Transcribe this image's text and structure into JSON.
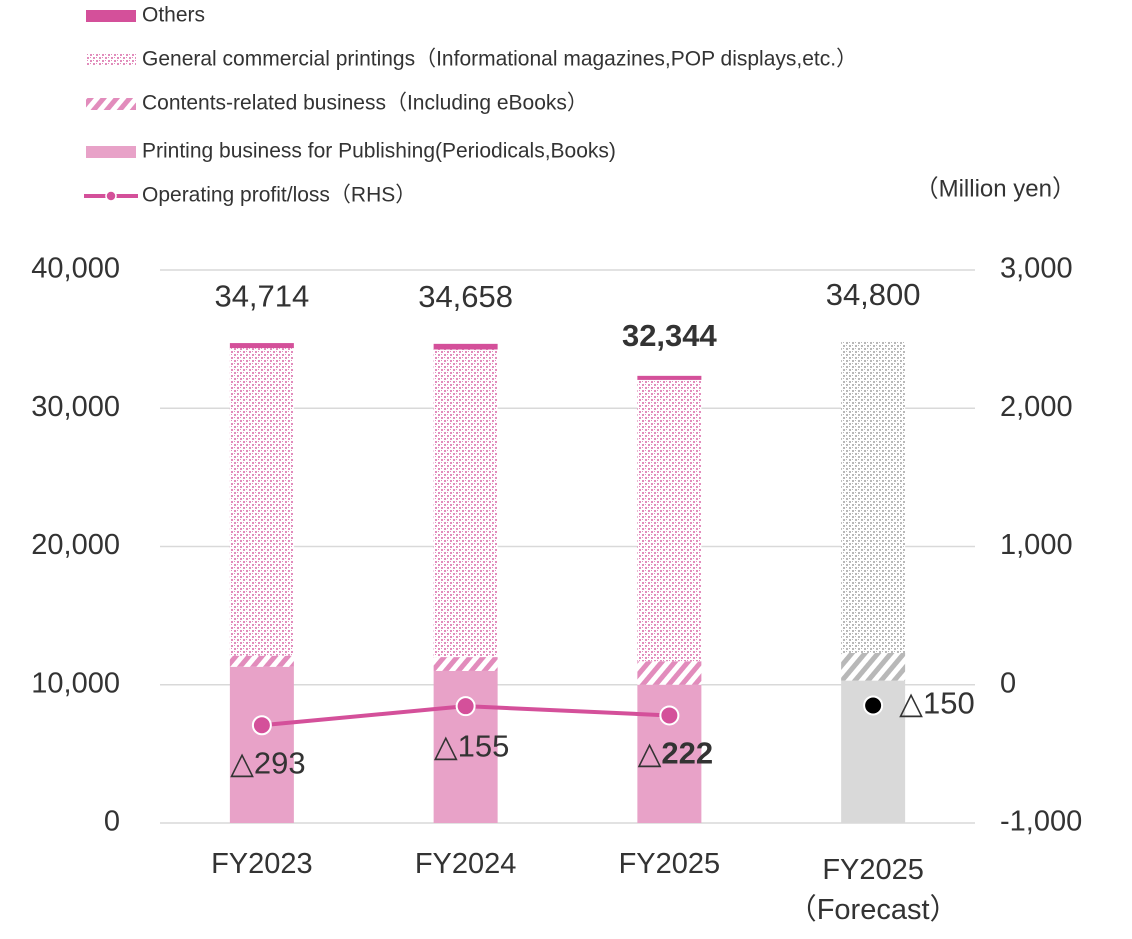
{
  "chart_data": {
    "type": "bar",
    "categories": [
      "FY2023",
      "FY2024",
      "FY2025",
      "FY2025\n（Forecast）"
    ],
    "series": [
      {
        "name": "Printing business for Publishing(Periodicals,Books)",
        "color": "#e8a2c8",
        "pattern": "solid",
        "values": [
          11300,
          11000,
          10000,
          10300
        ]
      },
      {
        "name": "Contents-related business（Including eBooks）",
        "color": "#e28cbc",
        "pattern": "hatch",
        "values": [
          800,
          1000,
          1700,
          2000
        ]
      },
      {
        "name": "General commercial printings（Informational magazines,POP displays,etc.）",
        "color": "#e28cbc",
        "pattern": "dots",
        "values": [
          22250,
          22250,
          20350,
          22500
        ]
      },
      {
        "name": "Others",
        "color": "#d4509a",
        "pattern": "solid",
        "values": [
          364,
          408,
          294,
          null
        ]
      },
      {
        "name": "Operating profit/loss（RHS）",
        "type": "line",
        "axis": "y2",
        "color": "#d4509a",
        "values": [
          -293,
          -155,
          -222,
          null
        ],
        "value_labels": [
          "△293",
          "△155",
          "△222",
          null
        ]
      }
    ],
    "totals": [
      34714,
      34658,
      32344,
      34800
    ],
    "total_labels": [
      "34,714",
      "34,658",
      "32,344",
      "34,800"
    ],
    "forecast_profit": -150,
    "forecast_profit_label": "△150",
    "forecast_index": 3,
    "forecast_color": "#d9d9d9",
    "forecast_pattern_color": "#b8b8b8",
    "highlight_index": 2,
    "unit_label": "（Million yen）",
    "ylim": [
      0,
      40000
    ],
    "yticks": [
      0,
      {
        "value": 10000,
        "label": "10,000"
      },
      {
        "value": 20000,
        "label": "20,000"
      },
      {
        "value": 30000,
        "label": "30,000"
      },
      {
        "value": 40000,
        "label": "40,000"
      }
    ],
    "y2lim": [
      -1000,
      3000
    ],
    "y2ticks": [
      {
        "value": -1000,
        "label": "-1,000"
      },
      0,
      {
        "value": 1000,
        "label": "1,000"
      },
      {
        "value": 2000,
        "label": "2,000"
      },
      {
        "value": 3000,
        "label": "3,000"
      }
    ],
    "grid": true
  }
}
